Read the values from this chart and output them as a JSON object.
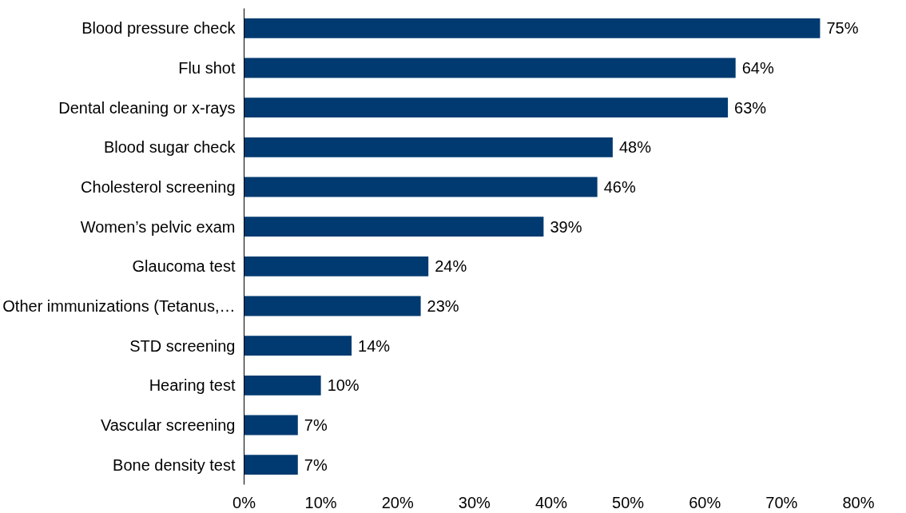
{
  "chart_data": {
    "type": "bar",
    "orientation": "horizontal",
    "categories": [
      "Blood pressure check",
      "Flu shot",
      "Dental cleaning or x-rays",
      "Blood sugar check",
      "Cholesterol screening",
      "Women’s pelvic exam",
      "Glaucoma test",
      "Other immunizations (Tetanus,…",
      "STD screening",
      "Hearing test",
      "Vascular screening",
      "Bone density test"
    ],
    "values": [
      75,
      64,
      63,
      48,
      46,
      39,
      24,
      23,
      14,
      10,
      7,
      7
    ],
    "value_labels": [
      "75%",
      "64%",
      "63%",
      "48%",
      "46%",
      "39%",
      "24%",
      "23%",
      "14%",
      "10%",
      "7%",
      "7%"
    ],
    "color": "#003a70",
    "xlim": [
      0,
      80
    ],
    "xticks": [
      {
        "value": 0,
        "label": "0%"
      },
      {
        "value": 10,
        "label": "10%"
      },
      {
        "value": 20,
        "label": "20%"
      },
      {
        "value": 30,
        "label": "30%"
      },
      {
        "value": 40,
        "label": "40%"
      },
      {
        "value": 50,
        "label": "50%"
      },
      {
        "value": 60,
        "label": "60%"
      },
      {
        "value": 70,
        "label": "70%"
      },
      {
        "value": 80,
        "label": "80%"
      }
    ],
    "grid": false
  }
}
